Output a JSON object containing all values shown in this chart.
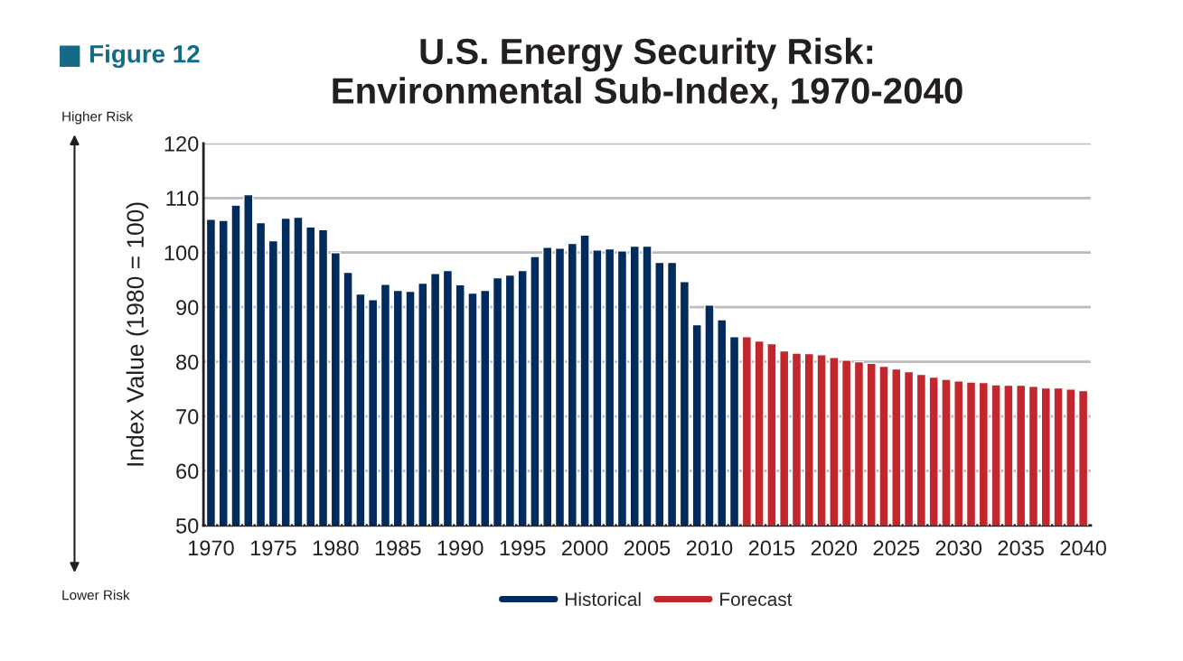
{
  "chart_data": {
    "type": "bar",
    "title": "U.S. Energy Security Risk:\nEnvironmental Sub-Index, 1970-2040",
    "ylabel": "Index Value (1980 = 100)",
    "annotations": [
      "Figure 12",
      "Higher Risk",
      "Lower Risk"
    ],
    "series": [
      {
        "name": "Historical",
        "color": "#002b5c",
        "x": [
          1970,
          1971,
          1972,
          1973,
          1974,
          1975,
          1976,
          1977,
          1978,
          1979,
          1980,
          1981,
          1982,
          1983,
          1984,
          1985,
          1986,
          1987,
          1988,
          1989,
          1990,
          1991,
          1992,
          1993,
          1994,
          1995,
          1996,
          1997,
          1998,
          1999,
          2000,
          2001,
          2002,
          2003,
          2004,
          2005,
          2006,
          2007,
          2008,
          2009,
          2010,
          2011,
          2012
        ],
        "values": [
          106.1,
          105.9,
          108.7,
          110.6,
          105.5,
          102.2,
          106.3,
          106.5,
          104.7,
          104.2,
          100,
          96.4,
          92.4,
          91.4,
          94.2,
          93.1,
          92.9,
          94.4,
          96.2,
          96.7,
          94.1,
          92.6,
          93.1,
          95.4,
          95.9,
          96.7,
          99.3,
          101,
          100.8,
          101.7,
          103.2,
          100.5,
          100.7,
          100.3,
          101.2,
          101.2,
          98.2,
          98.2,
          94.7,
          86.8,
          90.4,
          87.7,
          84.6
        ]
      },
      {
        "name": "Forecast",
        "color": "#c1272d",
        "x": [
          2013,
          2014,
          2015,
          2016,
          2017,
          2018,
          2019,
          2020,
          2021,
          2022,
          2023,
          2024,
          2025,
          2026,
          2027,
          2028,
          2029,
          2030,
          2031,
          2032,
          2033,
          2034,
          2035,
          2036,
          2037,
          2038,
          2039,
          2040
        ],
        "values": [
          84.6,
          83.8,
          83.3,
          82,
          81.6,
          81.5,
          81.3,
          80.8,
          80.3,
          80,
          79.7,
          79.2,
          78.7,
          78.2,
          77.7,
          77.2,
          76.8,
          76.5,
          76.3,
          76.2,
          75.8,
          75.7,
          75.7,
          75.5,
          75.2,
          75.2,
          75,
          74.7
        ]
      }
    ],
    "xlim": [
      1969.4,
      2040.6
    ],
    "xticks": [
      1970,
      1975,
      1980,
      1985,
      1990,
      1995,
      2000,
      2005,
      2010,
      2015,
      2020,
      2025,
      2030,
      2035,
      2040
    ],
    "ylim": [
      50,
      120
    ],
    "yticks": [
      50,
      60,
      70,
      80,
      90,
      100,
      110,
      120
    ],
    "grid": "y",
    "legend": "bottom"
  }
}
